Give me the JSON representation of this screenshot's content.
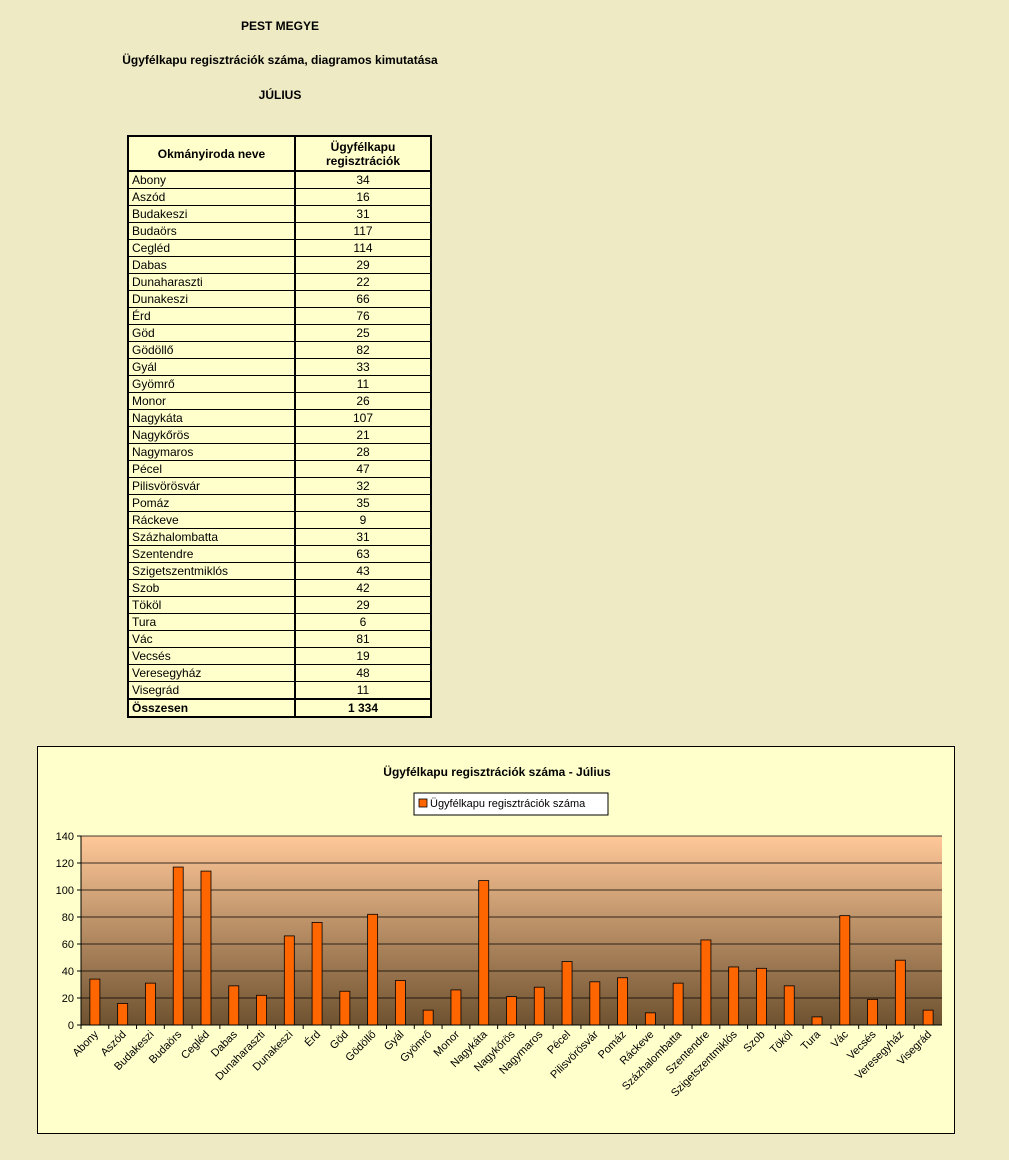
{
  "header": {
    "county": "PEST MEGYE",
    "subtitle": "Ügyfélkapu regisztrációk száma, diagramos kimutatása",
    "month": "JÚLIUS"
  },
  "table": {
    "col1_header": "Okmányiroda neve",
    "col2_header_line1": "Ügyfélkapu",
    "col2_header_line2": "regisztrációk",
    "rows": [
      {
        "name": "Abony",
        "value": "34"
      },
      {
        "name": "Aszód",
        "value": "16"
      },
      {
        "name": "Budakeszi",
        "value": "31"
      },
      {
        "name": "Budaörs",
        "value": "117"
      },
      {
        "name": "Cegléd",
        "value": "114"
      },
      {
        "name": "Dabas",
        "value": "29"
      },
      {
        "name": "Dunaharaszti",
        "value": "22"
      },
      {
        "name": "Dunakeszi",
        "value": "66"
      },
      {
        "name": "Érd",
        "value": "76"
      },
      {
        "name": "Göd",
        "value": "25"
      },
      {
        "name": "Gödöllő",
        "value": "82"
      },
      {
        "name": "Gyál",
        "value": "33"
      },
      {
        "name": "Gyömrő",
        "value": "11"
      },
      {
        "name": "Monor",
        "value": "26"
      },
      {
        "name": "Nagykáta",
        "value": "107"
      },
      {
        "name": "Nagykőrös",
        "value": "21"
      },
      {
        "name": "Nagymaros",
        "value": "28"
      },
      {
        "name": "Pécel",
        "value": "47"
      },
      {
        "name": "Pilisvörösvár",
        "value": "32"
      },
      {
        "name": "Pomáz",
        "value": "35"
      },
      {
        "name": "Ráckeve",
        "value": "9"
      },
      {
        "name": "Százhalombatta",
        "value": "31"
      },
      {
        "name": "Szentendre",
        "value": "63"
      },
      {
        "name": "Szigetszentmiklós",
        "value": "43"
      },
      {
        "name": "Szob",
        "value": "42"
      },
      {
        "name": "Tököl",
        "value": "29"
      },
      {
        "name": "Tura",
        "value": "6"
      },
      {
        "name": "Vác",
        "value": "81"
      },
      {
        "name": "Vecsés",
        "value": "19"
      },
      {
        "name": "Veresegyház",
        "value": "48"
      },
      {
        "name": "Visegrád",
        "value": "11"
      }
    ],
    "total_label": "Összesen",
    "total_value": "1 334"
  },
  "colors": {
    "bar": "#FF6600",
    "plot_top": "#FFC899",
    "plot_bottom": "#6E5230",
    "chart_bg": "#FFFFCC",
    "page_bg": "#EEEAC4"
  },
  "chart_data": {
    "type": "bar",
    "title": "Ügyfélkapu regisztrációk száma - Július",
    "legend_position": "top",
    "grid": true,
    "ylim": [
      0,
      140
    ],
    "yticks": [
      0,
      20,
      40,
      60,
      80,
      100,
      120,
      140
    ],
    "categories": [
      "Abony",
      "Aszód",
      "Budakeszi",
      "Budaörs",
      "Cegléd",
      "Dabas",
      "Dunaharaszti",
      "Dunakeszi",
      "Érd",
      "Göd",
      "Gödöllő",
      "Gyál",
      "Gyömrő",
      "Monor",
      "Nagykáta",
      "Nagykőrös",
      "Nagymaros",
      "Pécel",
      "Pilisvörösvár",
      "Pomáz",
      "Ráckeve",
      "Százhalombatta",
      "Szentendre",
      "Szigetszentmiklós",
      "Szob",
      "Tököl",
      "Tura",
      "Vác",
      "Vecsés",
      "Veresegyház",
      "Visegrád"
    ],
    "series": [
      {
        "name": "Ügyfélkapu regisztrációk száma",
        "values": [
          34,
          16,
          31,
          117,
          114,
          29,
          22,
          66,
          76,
          25,
          82,
          33,
          11,
          26,
          107,
          21,
          28,
          47,
          32,
          35,
          9,
          31,
          63,
          43,
          42,
          29,
          6,
          81,
          19,
          48,
          11
        ]
      }
    ]
  }
}
